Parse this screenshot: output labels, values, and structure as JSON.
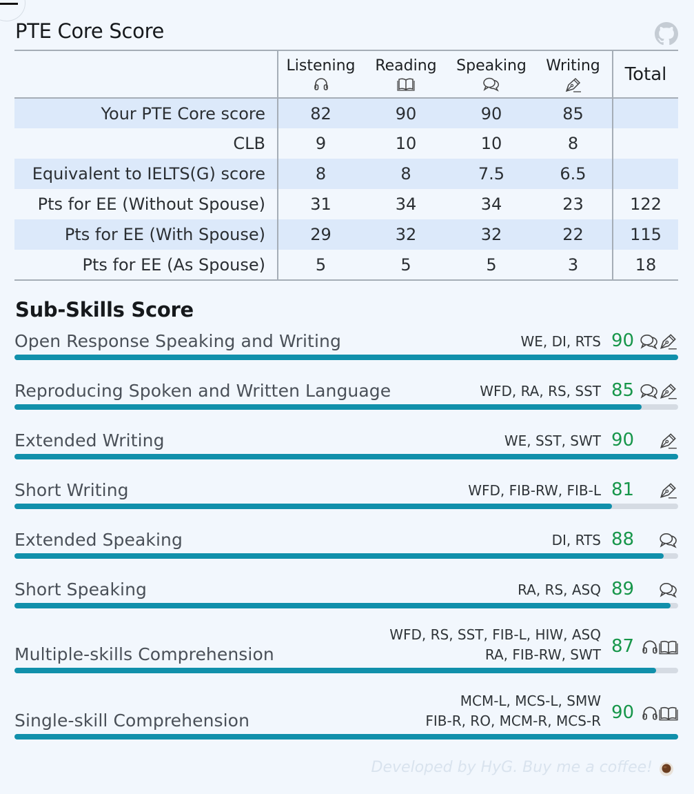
{
  "title": "PTE Core Score",
  "core_table": {
    "skills": [
      {
        "label": "Listening",
        "icon": "headphones-icon"
      },
      {
        "label": "Reading",
        "icon": "book-icon"
      },
      {
        "label": "Speaking",
        "icon": "chat-icon"
      },
      {
        "label": "Writing",
        "icon": "pen-icon"
      }
    ],
    "total_label": "Total",
    "rows": [
      {
        "label": "Your PTE Core score",
        "values": [
          "82",
          "90",
          "90",
          "85"
        ],
        "total": ""
      },
      {
        "label": "CLB",
        "values": [
          "9",
          "10",
          "10",
          "8"
        ],
        "total": ""
      },
      {
        "label": "Equivalent to IELTS(G) score",
        "values": [
          "8",
          "8",
          "7.5",
          "6.5"
        ],
        "total": ""
      },
      {
        "label": "Pts for EE (Without Spouse)",
        "values": [
          "31",
          "34",
          "34",
          "23"
        ],
        "total": "122"
      },
      {
        "label": "Pts for EE (With Spouse)",
        "values": [
          "29",
          "32",
          "32",
          "22"
        ],
        "total": "115"
      },
      {
        "label": "Pts for EE (As Spouse)",
        "values": [
          "5",
          "5",
          "5",
          "3"
        ],
        "total": "18"
      }
    ]
  },
  "sub_skills_title": "Sub-Skills Score",
  "sub_skills": [
    {
      "name": "Open Response Speaking and Writing",
      "codes": [
        "WE, DI, RTS"
      ],
      "score": "90",
      "max": 90,
      "icons": [
        "chat-icon",
        "pen-icon"
      ]
    },
    {
      "name": "Reproducing Spoken and Written Language",
      "codes": [
        "WFD, RA, RS, SST"
      ],
      "score": "85",
      "max": 90,
      "icons": [
        "chat-icon",
        "pen-icon"
      ]
    },
    {
      "name": "Extended Writing",
      "codes": [
        "WE, SST, SWT"
      ],
      "score": "90",
      "max": 90,
      "icons": [
        "pen-icon"
      ]
    },
    {
      "name": "Short Writing",
      "codes": [
        "WFD, FIB-RW, FIB-L"
      ],
      "score": "81",
      "max": 90,
      "icons": [
        "pen-icon"
      ]
    },
    {
      "name": "Extended Speaking",
      "codes": [
        "DI, RTS"
      ],
      "score": "88",
      "max": 90,
      "icons": [
        "chat-icon"
      ]
    },
    {
      "name": "Short Speaking",
      "codes": [
        "RA, RS, ASQ"
      ],
      "score": "89",
      "max": 90,
      "icons": [
        "chat-icon"
      ]
    },
    {
      "name": "Multiple-skills Comprehension",
      "codes": [
        "WFD, RS, SST, FIB-L, HIW, ASQ",
        "RA, FIB-RW, SWT"
      ],
      "score": "87",
      "max": 90,
      "icons": [
        "headphones-icon",
        "book-icon"
      ]
    },
    {
      "name": "Single-skill Comprehension",
      "codes": [
        "MCM-L, MCS-L, SMW",
        "FIB-R, RO, MCM-R, MCS-R"
      ],
      "score": "90",
      "max": 90,
      "icons": [
        "headphones-icon",
        "book-icon"
      ]
    }
  ],
  "footer": "Developed by HyG. Buy me a coffee!",
  "colors": {
    "accent": "#1190ab",
    "score": "#17964a",
    "track": "#d5dbe3",
    "row_alt": "#dce9fa"
  }
}
